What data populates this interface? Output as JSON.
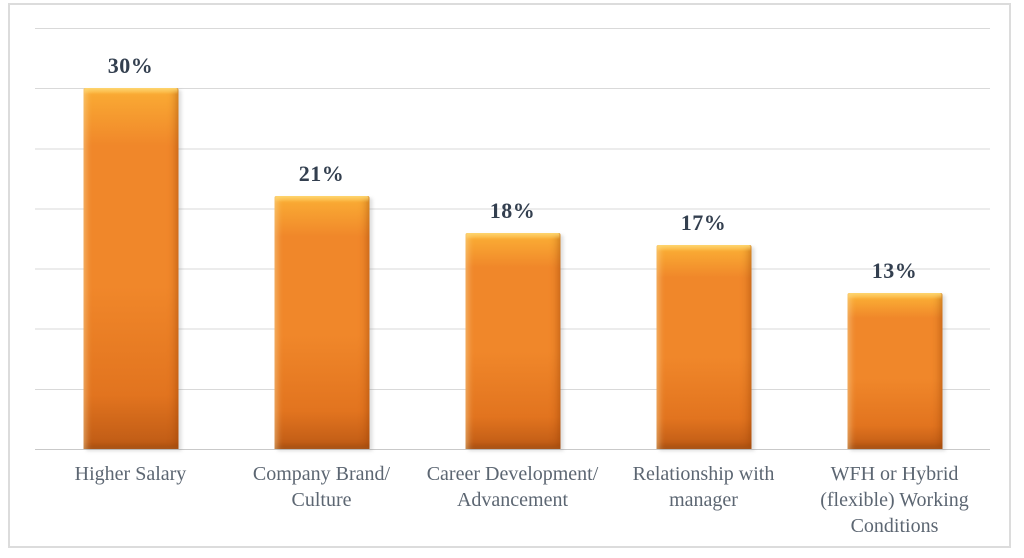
{
  "chart_data": {
    "type": "bar",
    "title": "",
    "xlabel": "",
    "ylabel": "",
    "categories": [
      "Higher Salary",
      "Company Brand/ Culture",
      "Career Development/ Advancement",
      "Relationship with manager",
      "WFH or Hybrid (flexible) Working Conditions"
    ],
    "values": [
      30,
      21,
      18,
      17,
      13
    ],
    "value_labels": [
      "30%",
      "21%",
      "18%",
      "17%",
      "13%"
    ],
    "ylim": [
      0,
      35
    ],
    "grid": true,
    "grid_step": 5,
    "legend": "none",
    "colors": {
      "bar_top": "#fec14b",
      "bar_main": "#f0872a",
      "bar_dark": "#bd5a15",
      "value_label": "#333f4f",
      "category_label": "#5c6672",
      "gridline": "#d9d9d9",
      "axis_line": "#c9c9c9",
      "frame_border": "#dcdcdc",
      "background": "#ffffff"
    }
  }
}
